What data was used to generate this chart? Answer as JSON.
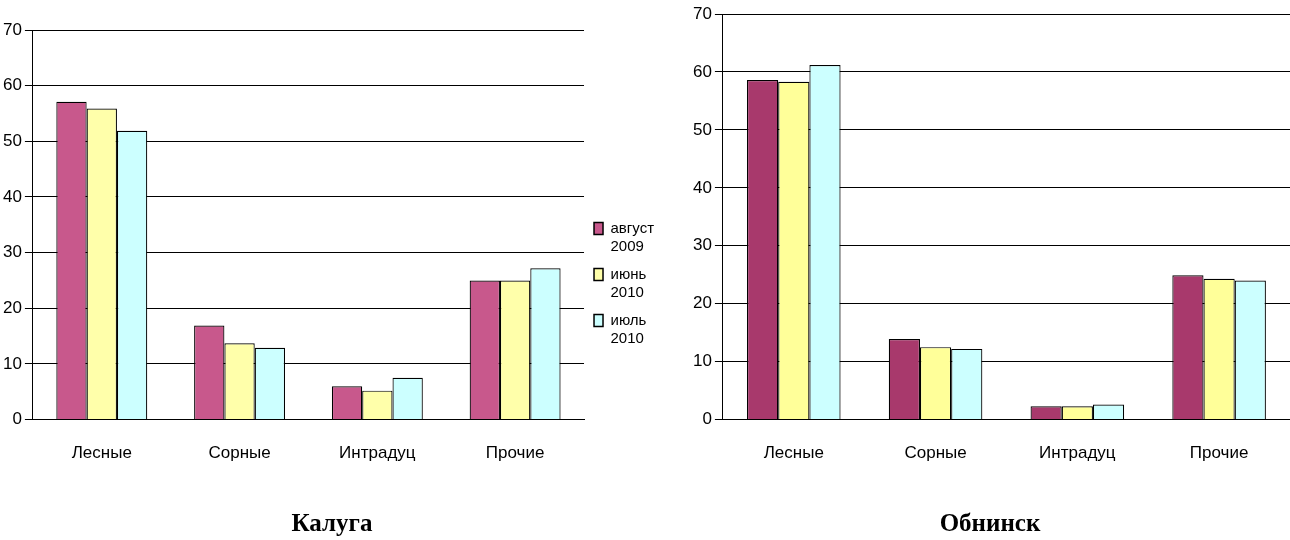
{
  "chart_data": [
    {
      "type": "bar",
      "title": "Калуга",
      "categories": [
        "Лесные",
        "Сорные",
        "Интрадуц",
        "Прочие"
      ],
      "series": [
        {
          "name": "август 2009",
          "color": "#c8588c",
          "values": [
            57.1,
            16.9,
            6.0,
            25.0
          ]
        },
        {
          "name": "июнь 2010",
          "color": "#ffffaa",
          "values": [
            55.9,
            13.7,
            5.2,
            25.0
          ]
        },
        {
          "name": "июль 2010",
          "color": "#ccffff",
          "values": [
            51.9,
            12.9,
            7.5,
            27.2
          ]
        }
      ],
      "ylim": [
        0,
        70
      ],
      "yticks": [
        0,
        10,
        20,
        30,
        40,
        50,
        60,
        70
      ],
      "grid": "y",
      "legend": "right"
    },
    {
      "type": "bar",
      "title": "Обнинск",
      "categories": [
        "Лесные",
        "Сорные",
        "Интрадуц",
        "Прочие"
      ],
      "series": [
        {
          "color": "#a8396c",
          "values": [
            58.6,
            13.9,
            2.3,
            24.9
          ]
        },
        {
          "color": "#ffff99",
          "values": [
            58.3,
            12.5,
            2.3,
            24.3
          ]
        },
        {
          "color": "#ccffff",
          "values": [
            61.2,
            12.2,
            2.6,
            24.0
          ]
        }
      ],
      "ylim": [
        0,
        70
      ],
      "yticks": [
        0,
        10,
        20,
        30,
        40,
        50,
        60,
        70
      ],
      "grid": "y",
      "legend": false
    }
  ]
}
